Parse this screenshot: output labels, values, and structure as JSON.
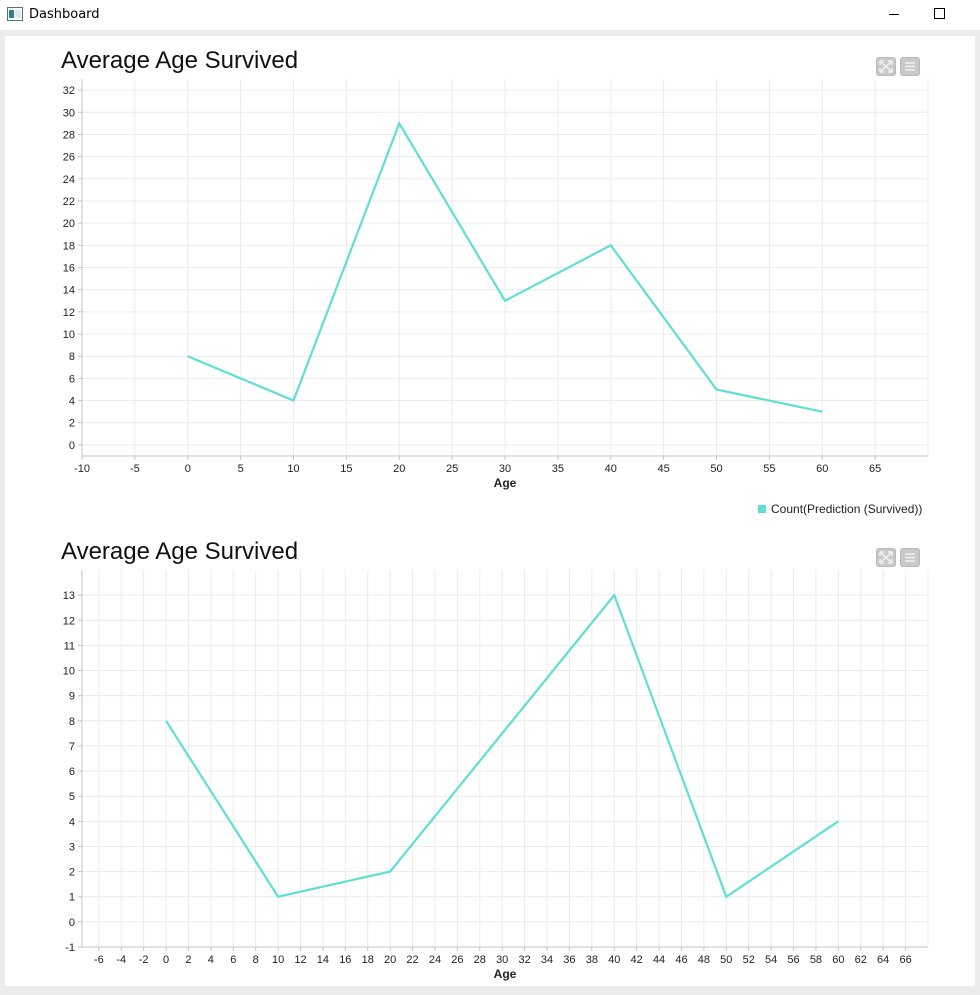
{
  "window": {
    "title": "Dashboard",
    "icon": "app-window-icon",
    "controls": [
      "minimize-icon",
      "maximize-icon"
    ]
  },
  "toolbar_icons": [
    "expand-icon",
    "menu-icon"
  ],
  "colors": {
    "series": "#5fdfd3",
    "grid": "#ececec",
    "axis": "#c4c4c4"
  },
  "chart_data": [
    {
      "type": "line",
      "title": "Average Age Survived",
      "xlabel": "Age",
      "ylabel": "",
      "x": [
        0,
        10,
        20,
        30,
        40,
        50,
        60
      ],
      "series": [
        {
          "name": "Count(Prediction (Survived))",
          "values": [
            8,
            4,
            29,
            13,
            18,
            5,
            3
          ]
        }
      ],
      "xlim": [
        -10,
        70
      ],
      "ylim": [
        -1,
        33
      ],
      "xticks": [
        -10,
        -5,
        0,
        5,
        10,
        15,
        20,
        25,
        30,
        35,
        40,
        45,
        50,
        55,
        60,
        65
      ],
      "yticks": [
        0,
        2,
        4,
        6,
        8,
        10,
        12,
        14,
        16,
        18,
        20,
        22,
        24,
        26,
        28,
        30,
        32
      ],
      "legend": "bottom-right",
      "grid": true
    },
    {
      "type": "line",
      "title": "Average Age Survived",
      "xlabel": "Age",
      "ylabel": "",
      "x": [
        0,
        10,
        20,
        40,
        50,
        60
      ],
      "series": [
        {
          "values": [
            8,
            1,
            2,
            13,
            1,
            4
          ]
        }
      ],
      "xlim": [
        -7.5,
        68
      ],
      "ylim": [
        -1,
        14
      ],
      "xticks": [
        -6,
        -4,
        -2,
        0,
        2,
        4,
        6,
        8,
        10,
        12,
        14,
        16,
        18,
        20,
        22,
        24,
        26,
        28,
        30,
        32,
        34,
        36,
        38,
        40,
        42,
        44,
        46,
        48,
        50,
        52,
        54,
        56,
        58,
        60,
        62,
        64,
        66
      ],
      "yticks": [
        -1,
        0,
        1,
        2,
        3,
        4,
        5,
        6,
        7,
        8,
        9,
        10,
        11,
        12,
        13
      ],
      "grid": true
    }
  ]
}
